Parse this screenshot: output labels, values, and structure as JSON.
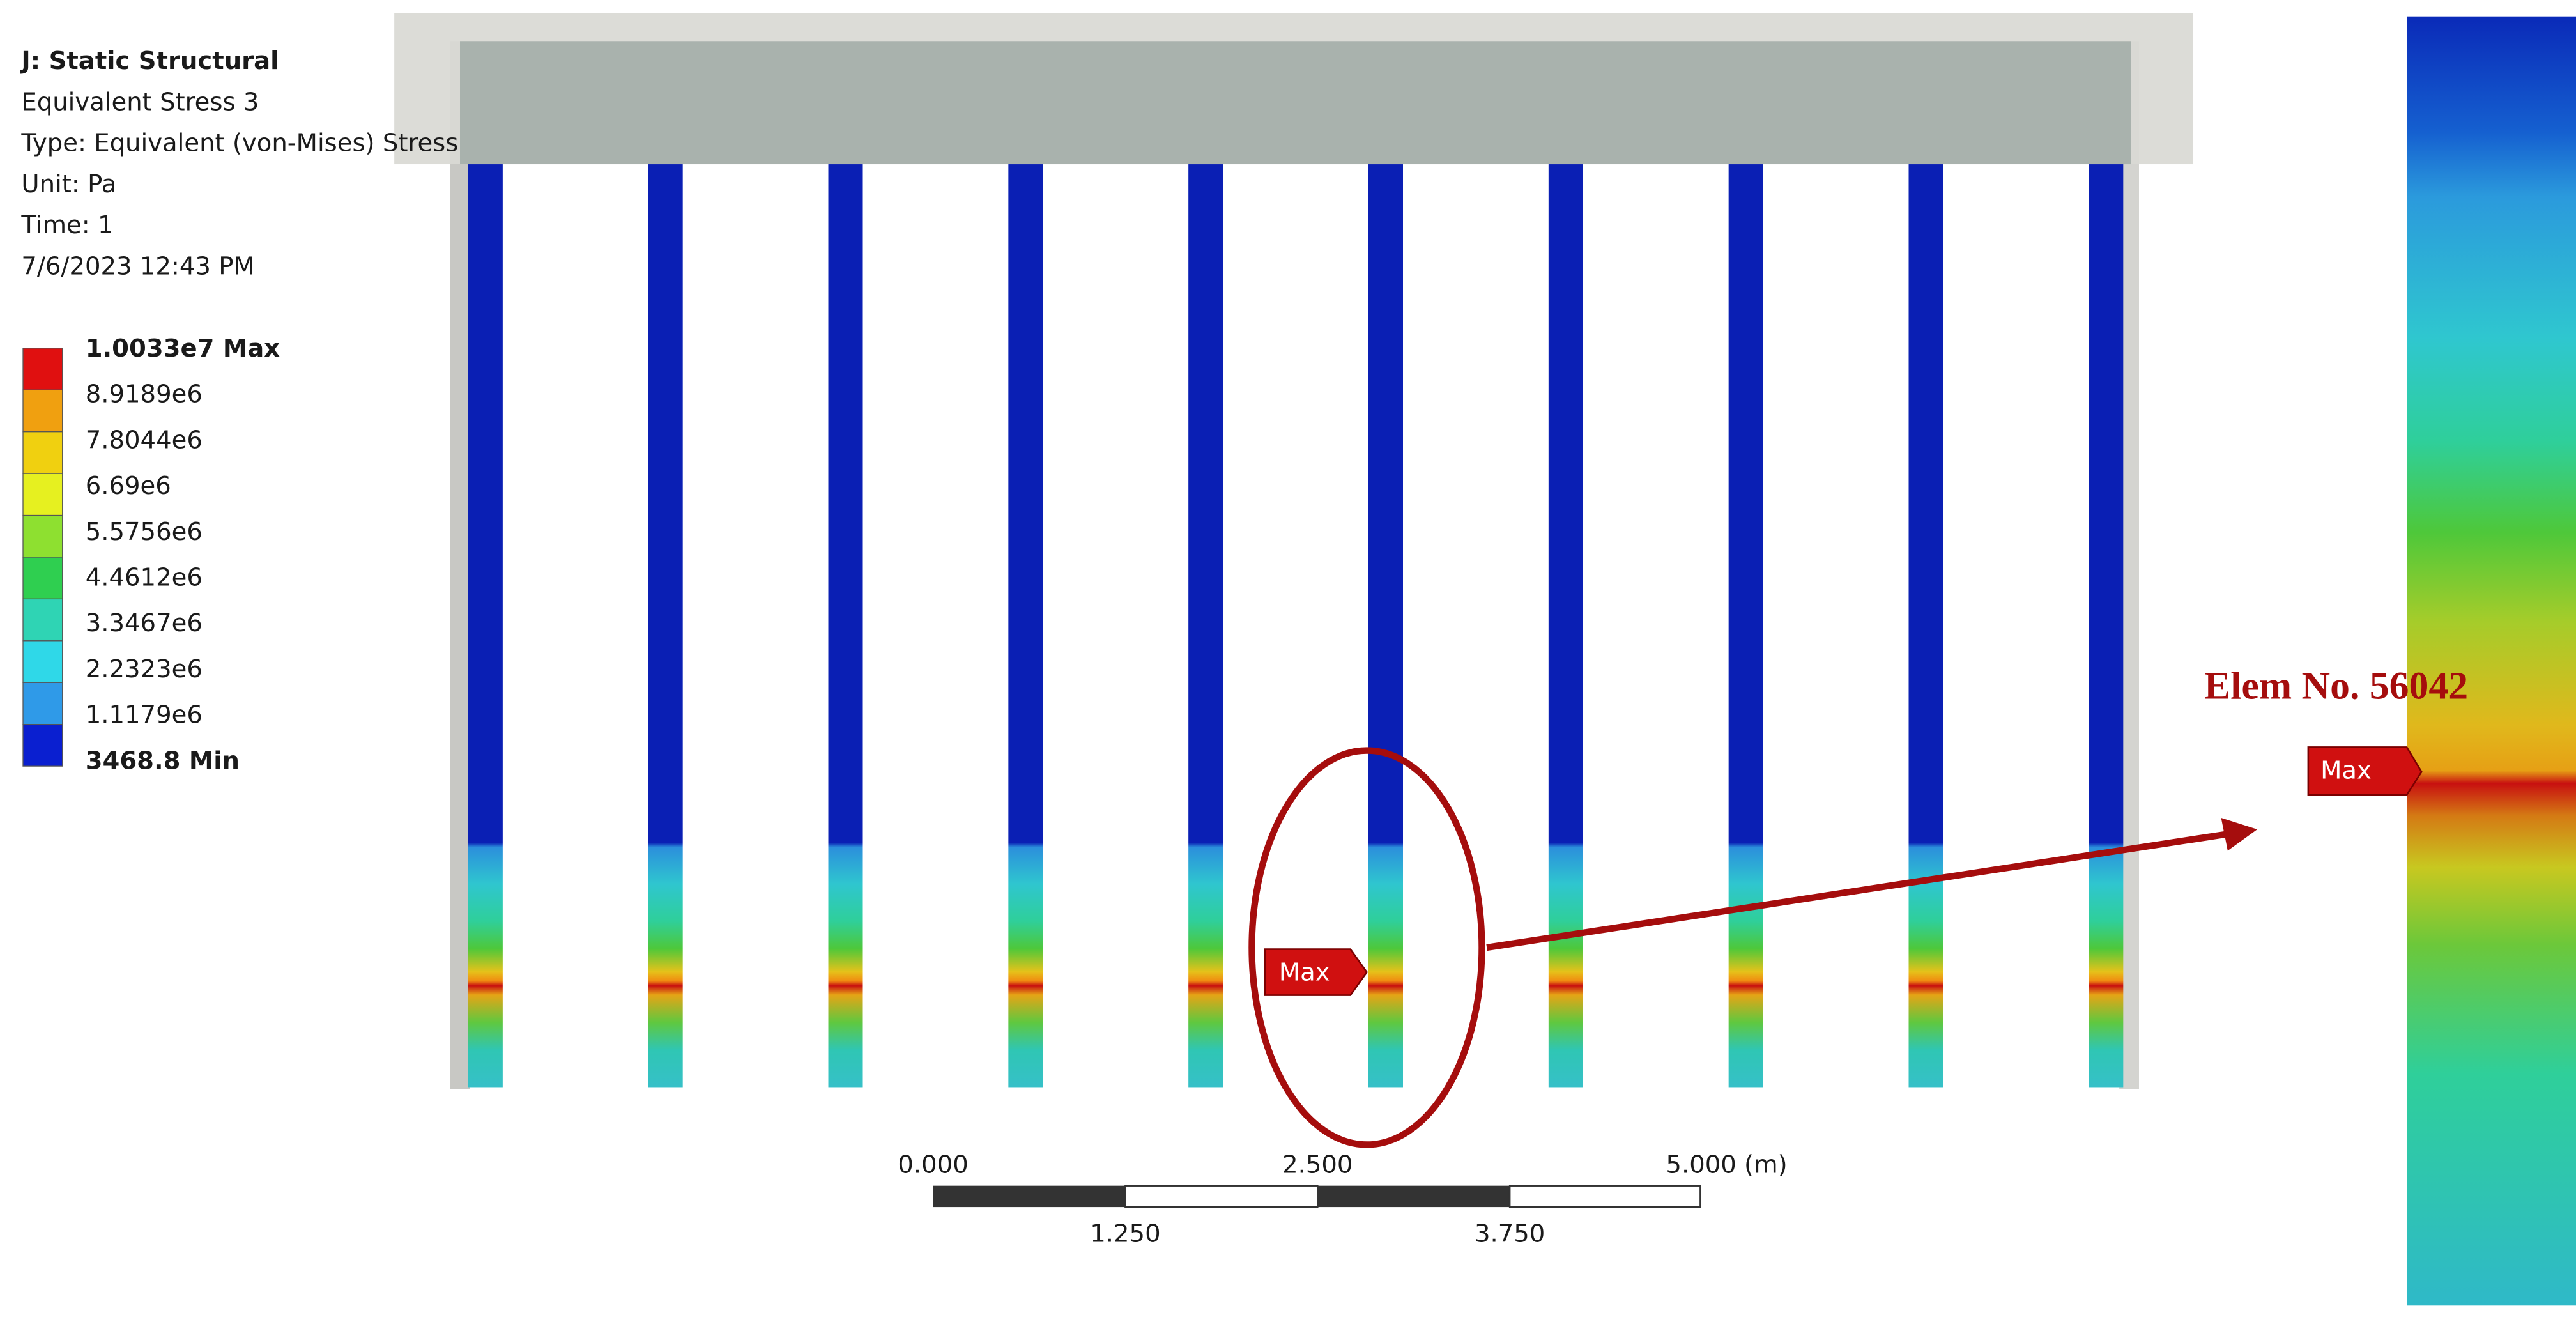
{
  "header": {
    "title": "J: Static Structural",
    "lines": [
      "Equivalent Stress 3",
      "Type: Equivalent (von-Mises) Stress",
      "Unit: Pa",
      "Time: 1",
      "7/6/2023 12:43 PM"
    ]
  },
  "legend": {
    "labels": [
      "1.0033e7 Max",
      "8.9189e6",
      "7.8044e6",
      "6.69e6",
      "5.5756e6",
      "4.4612e6",
      "3.3467e6",
      "2.2323e6",
      "1.1179e6",
      "3468.8 Min"
    ]
  },
  "scale": {
    "top_labels": [
      "0.000",
      "2.500",
      "5.000 (m)"
    ],
    "bottom_labels": [
      "1.250",
      "3.750"
    ]
  },
  "markers": [
    "Max",
    "Max"
  ],
  "annotation": "Elem No. 56042"
}
